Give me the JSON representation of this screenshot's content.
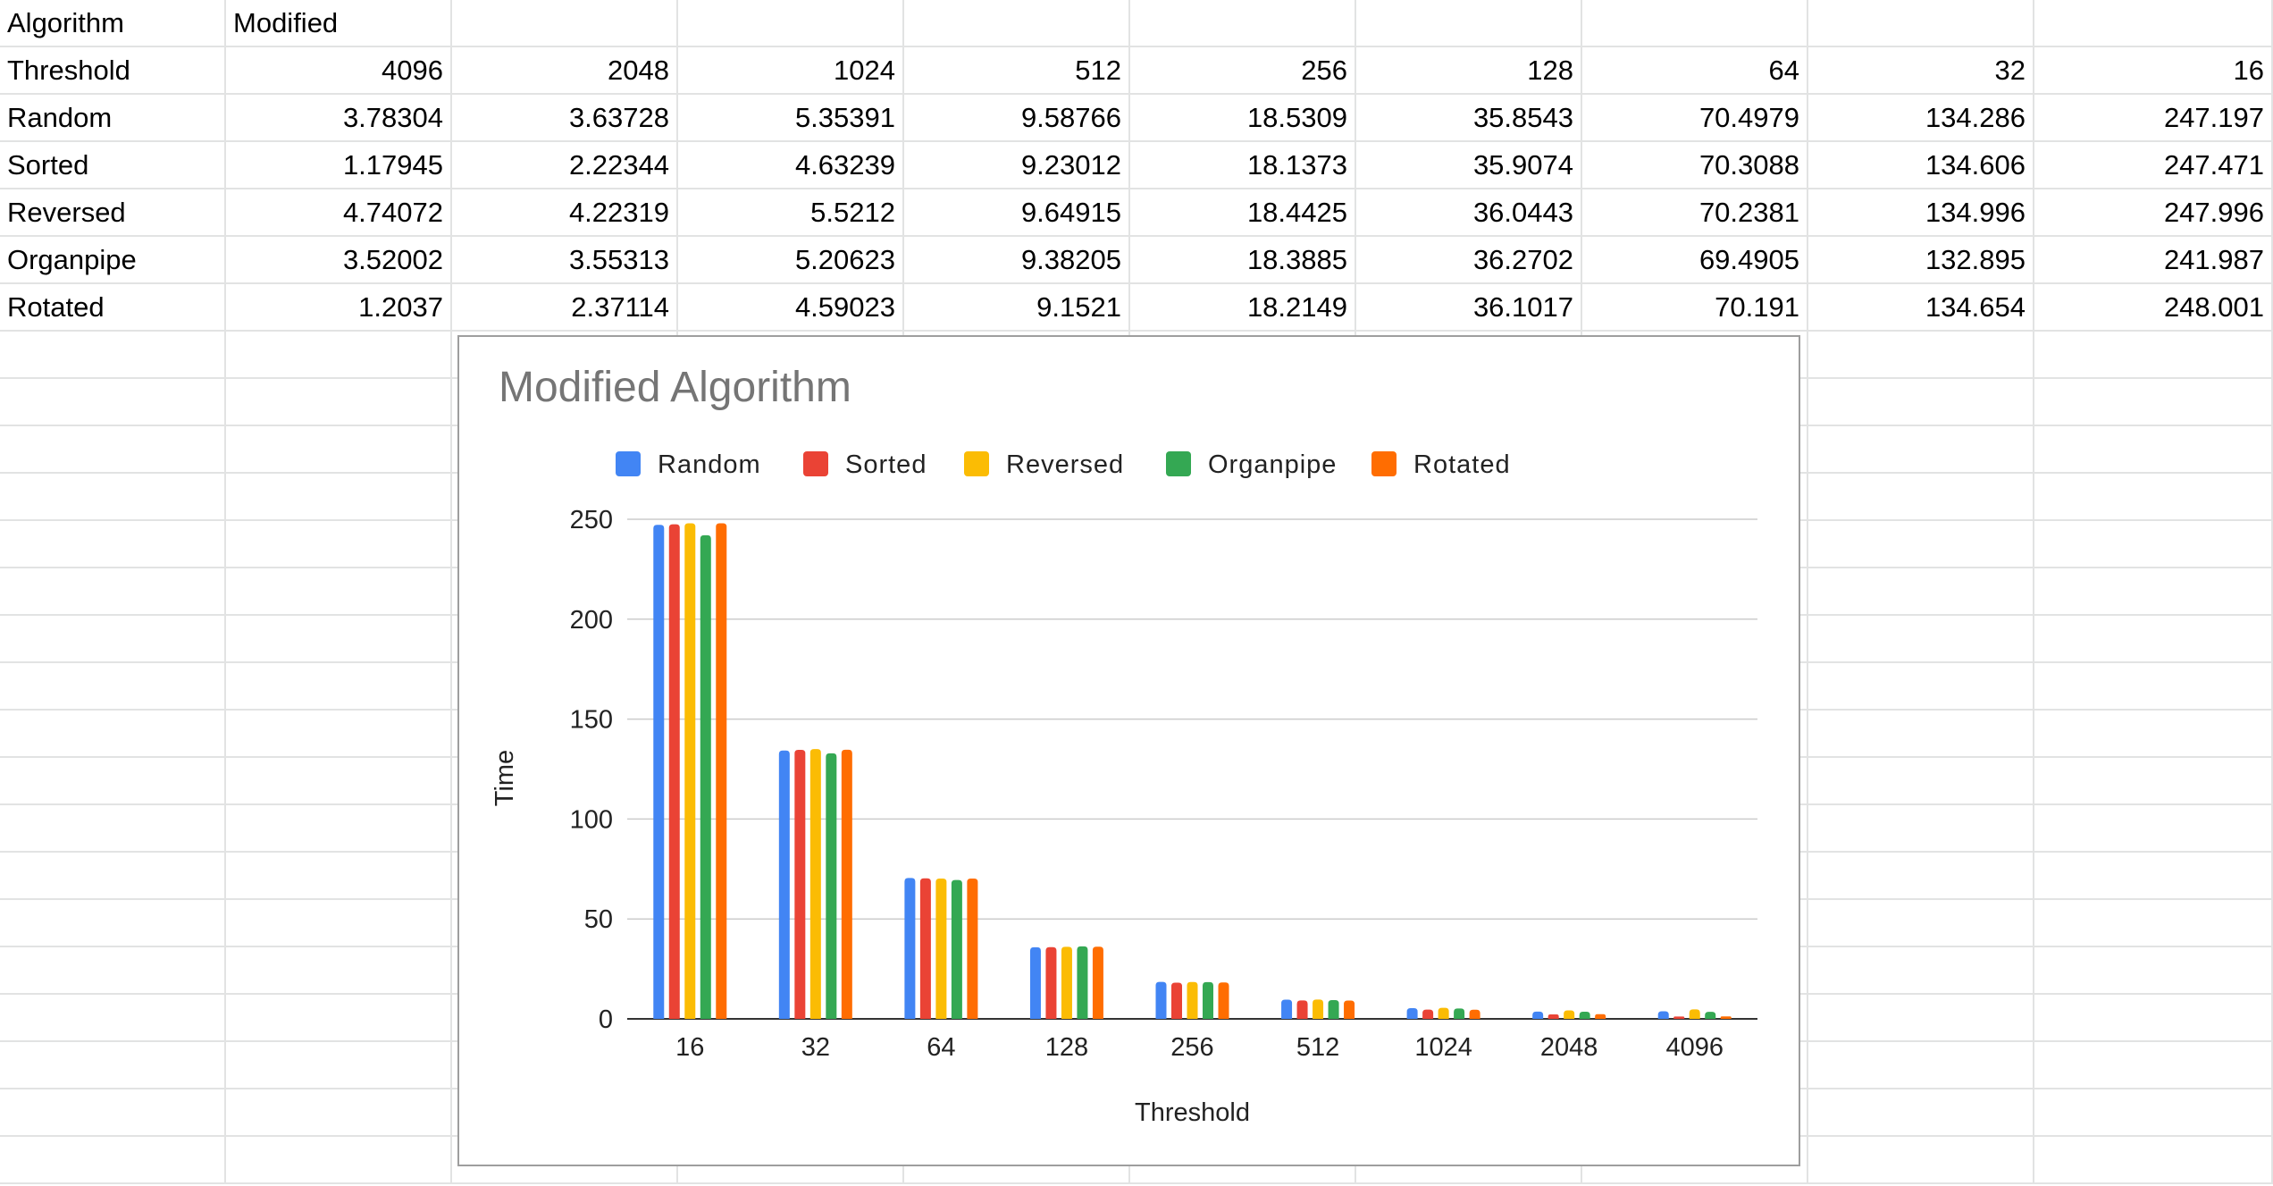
{
  "sheet": {
    "header_row": [
      "Algorithm",
      "Modified"
    ],
    "rows": [
      {
        "label": "Threshold",
        "values": [
          "4096",
          "2048",
          "1024",
          "512",
          "256",
          "128",
          "64",
          "32",
          "16"
        ]
      },
      {
        "label": "Random",
        "values": [
          "3.78304",
          "3.63728",
          "5.35391",
          "9.58766",
          "18.5309",
          "35.8543",
          "70.4979",
          "134.286",
          "247.197"
        ]
      },
      {
        "label": "Sorted",
        "values": [
          "1.17945",
          "2.22344",
          "4.63239",
          "9.23012",
          "18.1373",
          "35.9074",
          "70.3088",
          "134.606",
          "247.471"
        ]
      },
      {
        "label": "Reversed",
        "values": [
          "4.74072",
          "4.22319",
          "5.5212",
          "9.64915",
          "18.4425",
          "36.0443",
          "70.2381",
          "134.996",
          "247.996"
        ]
      },
      {
        "label": "Organpipe",
        "values": [
          "3.52002",
          "3.55313",
          "5.20623",
          "9.38205",
          "18.3885",
          "36.2702",
          "69.4905",
          "132.895",
          "241.987"
        ]
      },
      {
        "label": "Rotated",
        "values": [
          "1.2037",
          "2.37114",
          "4.59023",
          "9.1521",
          "18.2149",
          "36.1017",
          "70.191",
          "134.654",
          "248.001"
        ]
      }
    ]
  },
  "chart_data": {
    "type": "bar",
    "title": "Modified Algorithm",
    "xlabel": "Threshold",
    "ylabel": "Time",
    "categories": [
      "16",
      "32",
      "64",
      "128",
      "256",
      "512",
      "1024",
      "2048",
      "4096"
    ],
    "series": [
      {
        "name": "Random",
        "color": "#4285f4",
        "values": [
          247.197,
          134.286,
          70.4979,
          35.8543,
          18.5309,
          9.58766,
          5.35391,
          3.63728,
          3.78304
        ]
      },
      {
        "name": "Sorted",
        "color": "#ea4335",
        "values": [
          247.471,
          134.606,
          70.3088,
          35.9074,
          18.1373,
          9.23012,
          4.63239,
          2.22344,
          1.17945
        ]
      },
      {
        "name": "Reversed",
        "color": "#fbbc04",
        "values": [
          247.996,
          134.996,
          70.2381,
          36.0443,
          18.4425,
          9.64915,
          5.5212,
          4.22319,
          4.74072
        ]
      },
      {
        "name": "Organpipe",
        "color": "#34a853",
        "values": [
          241.987,
          132.895,
          69.4905,
          36.2702,
          18.3885,
          9.38205,
          5.20623,
          3.55313,
          3.52002
        ]
      },
      {
        "name": "Rotated",
        "color": "#ff6d01",
        "values": [
          248.001,
          134.654,
          70.191,
          36.1017,
          18.2149,
          9.1521,
          4.59023,
          2.37114,
          1.2037
        ]
      }
    ],
    "ylim": [
      0,
      250
    ],
    "yticks": [
      "0",
      "50",
      "100",
      "150",
      "200",
      "250"
    ],
    "grid": true,
    "legend": "top"
  }
}
